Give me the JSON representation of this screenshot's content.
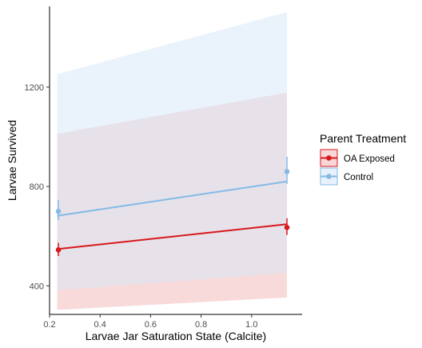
{
  "chart_data": {
    "type": "line",
    "title": "",
    "xlabel": "Larvae Jar Saturation State (Calcite)",
    "ylabel": "Larvae Survived",
    "xlim": [
      0.2,
      1.2
    ],
    "ylim": [
      285,
      1525
    ],
    "x_ticks": [
      0.2,
      0.4,
      0.6,
      0.8,
      1.0
    ],
    "x_tick_labels": [
      "0.2",
      "0.4",
      "0.6",
      "0.8",
      "1.0"
    ],
    "y_ticks": [
      400,
      800,
      1200
    ],
    "y_tick_labels": [
      "400",
      "800",
      "1200"
    ],
    "grid": false,
    "legend": {
      "title": "Parent Treatment",
      "placement": "right"
    },
    "series": [
      {
        "name": "OA Exposed",
        "color": "#d7191c",
        "ribbon_color": "#f4b6b8",
        "fit_x": [
          0.23,
          1.14
        ],
        "fit_y": [
          548,
          648
        ],
        "ribbon_lower": [
          303,
          353
        ],
        "ribbon_upper": [
          1012,
          1178
        ],
        "points": [
          {
            "x": 0.235,
            "y": 545,
            "err_low": 520,
            "err_high": 573
          },
          {
            "x": 1.14,
            "y": 635,
            "err_low": 605,
            "err_high": 672
          }
        ]
      },
      {
        "name": "Control",
        "color": "#83bbe5",
        "ribbon_color": "#d6e8fa",
        "fit_x": [
          0.23,
          1.14
        ],
        "fit_y": [
          682,
          820
        ],
        "ribbon_lower": [
          382,
          452
        ],
        "ribbon_upper": [
          1252,
          1502
        ],
        "points": [
          {
            "x": 0.235,
            "y": 700,
            "err_low": 665,
            "err_high": 745
          },
          {
            "x": 1.14,
            "y": 860,
            "err_low": 810,
            "err_high": 920
          }
        ]
      }
    ]
  }
}
